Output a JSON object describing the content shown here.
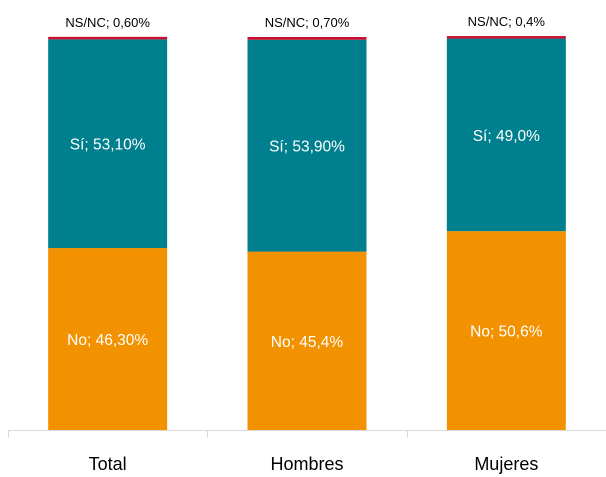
{
  "chart_data": {
    "type": "bar",
    "stacked": true,
    "percent_stacked": true,
    "categories": [
      "Total",
      "Hombres",
      "Mujeres"
    ],
    "series": [
      {
        "key": "no",
        "values": [
          46.3,
          45.4,
          50.6
        ],
        "labels": [
          "No; 46,30%",
          "No; 45,4%",
          "No; 50,6%"
        ],
        "color": "#F39200"
      },
      {
        "key": "si",
        "values": [
          53.1,
          53.9,
          49.0
        ],
        "labels": [
          "Sí; 53,10%",
          "Sí; 53,90%",
          "Sí; 49,0%"
        ],
        "color": "#00808F"
      },
      {
        "key": "nsnc",
        "values": [
          0.6,
          0.7,
          0.4
        ],
        "labels": [
          "NS/NC; 0,60%",
          "NS/NC; 0,70%",
          "NS/NC; 0,4%"
        ],
        "color": "#C8102E"
      }
    ],
    "ylim": [
      0,
      100
    ],
    "grid": false,
    "legend": "none",
    "axis_color": "#D9D9D9",
    "label_color_inside": "#FFFFFF",
    "label_color_outside": "#000000"
  }
}
